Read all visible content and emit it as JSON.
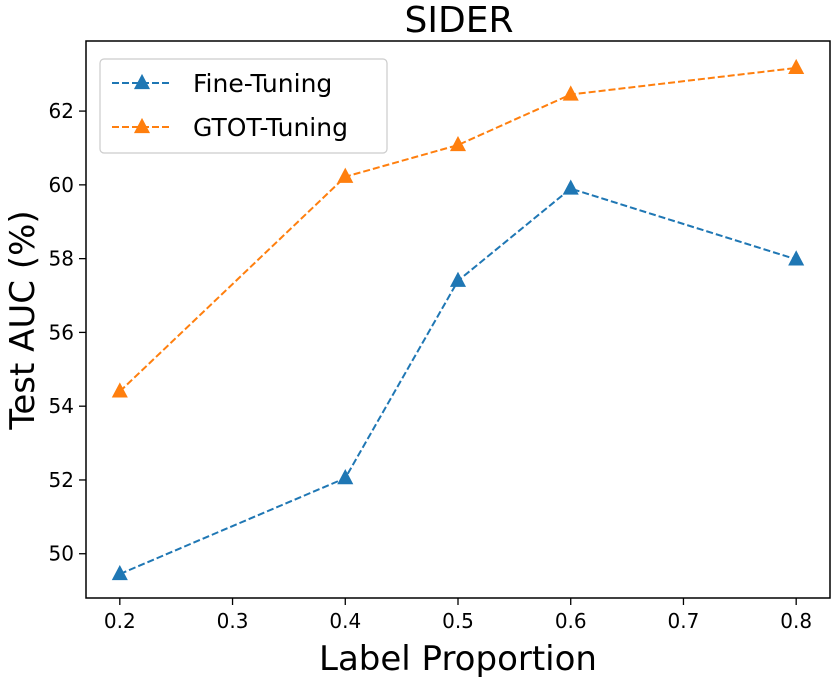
{
  "chart_data": {
    "type": "line",
    "title": "SIDER",
    "xlabel": "Label Proportion",
    "ylabel": "Test AUC (%)",
    "xlim": [
      0.17,
      0.83
    ],
    "ylim": [
      48.8,
      63.9
    ],
    "xticks": [
      0.2,
      0.3,
      0.4,
      0.5,
      0.6,
      0.7,
      0.8
    ],
    "xtick_labels": [
      "0.2",
      "0.3",
      "0.4",
      "0.5",
      "0.6",
      "0.7",
      "0.8"
    ],
    "yticks": [
      50,
      52,
      54,
      56,
      58,
      60,
      62
    ],
    "ytick_labels": [
      "50",
      "52",
      "54",
      "56",
      "58",
      "60",
      "62"
    ],
    "grid": false,
    "legend_position": "top-left",
    "series": [
      {
        "name": "Fine-Tuning",
        "color": "#1f77b4",
        "marker": "triangle-up",
        "linestyle": "dashed",
        "x": [
          0.2,
          0.4,
          0.5,
          0.6,
          0.8
        ],
        "values": [
          49.45,
          52.05,
          57.4,
          59.9,
          57.98
        ]
      },
      {
        "name": "GTOT-Tuning",
        "color": "#ff7f0e",
        "marker": "triangle-up",
        "linestyle": "dashed",
        "x": [
          0.2,
          0.4,
          0.5,
          0.6,
          0.8
        ],
        "values": [
          54.4,
          60.22,
          61.08,
          62.45,
          63.17
        ]
      }
    ]
  }
}
